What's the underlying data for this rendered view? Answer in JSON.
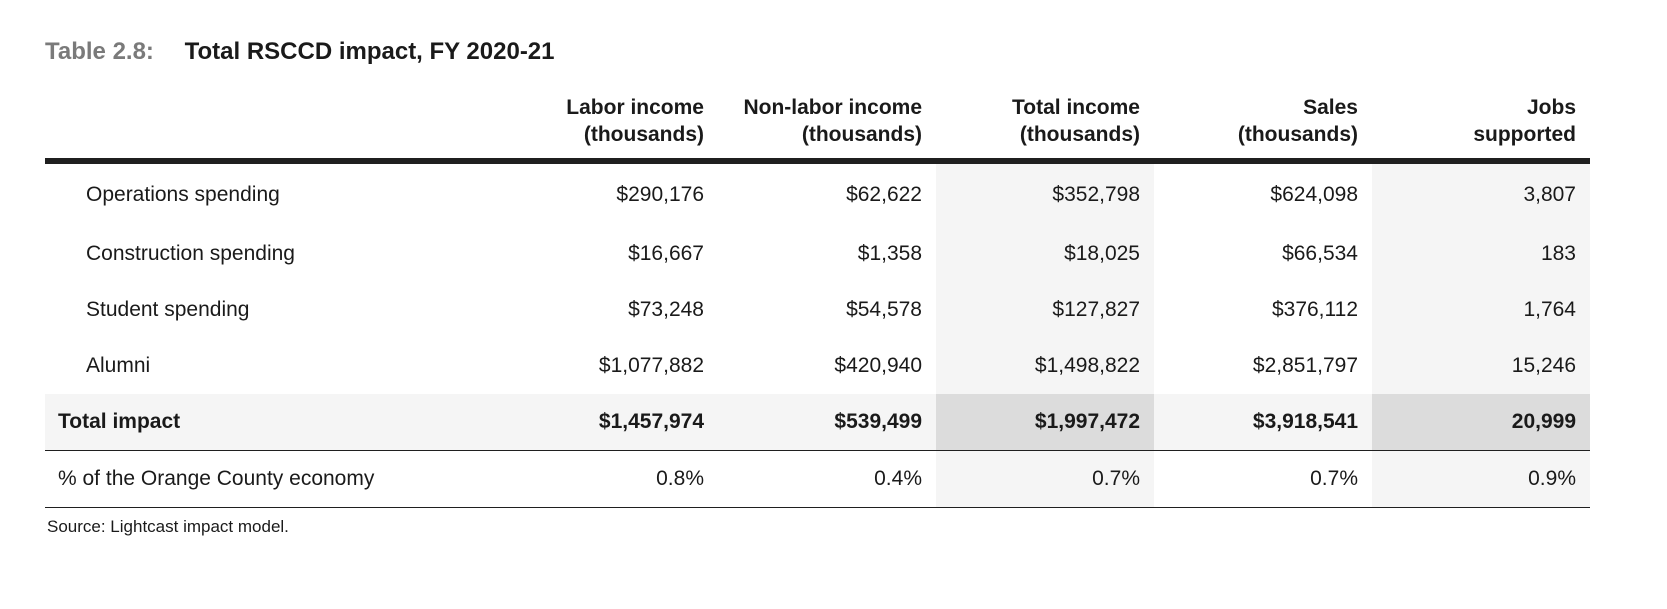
{
  "title": {
    "label": "Table 2.8:",
    "text": "Total RSCCD impact, FY 2020-21"
  },
  "table": {
    "headers": [
      [
        "Labor income",
        "(thousands)"
      ],
      [
        "Non-labor income",
        "(thousands)"
      ],
      [
        "Total income",
        "(thousands)"
      ],
      [
        "Sales",
        "(thousands)"
      ],
      [
        "Jobs",
        "supported"
      ]
    ],
    "rows": [
      {
        "label": "Operations spending",
        "values": [
          "$290,176",
          "$62,622",
          "$352,798",
          "$624,098",
          "3,807"
        ]
      },
      {
        "label": "Construction spending",
        "values": [
          "$16,667",
          "$1,358",
          "$18,025",
          "$66,534",
          "183"
        ]
      },
      {
        "label": "Student spending",
        "values": [
          "$73,248",
          "$54,578",
          "$127,827",
          "$376,112",
          "1,764"
        ]
      },
      {
        "label": "Alumni",
        "values": [
          "$1,077,882",
          "$420,940",
          "$1,498,822",
          "$2,851,797",
          "15,246"
        ]
      }
    ],
    "total": {
      "label": "Total impact",
      "values": [
        "$1,457,974",
        "$539,499",
        "$1,997,472",
        "$3,918,541",
        "20,999"
      ]
    },
    "share": {
      "label": "% of the Orange County economy",
      "values": [
        "0.8%",
        "0.4%",
        "0.7%",
        "0.7%",
        "0.9%"
      ]
    }
  },
  "source": "Source: Lightcast impact model."
}
